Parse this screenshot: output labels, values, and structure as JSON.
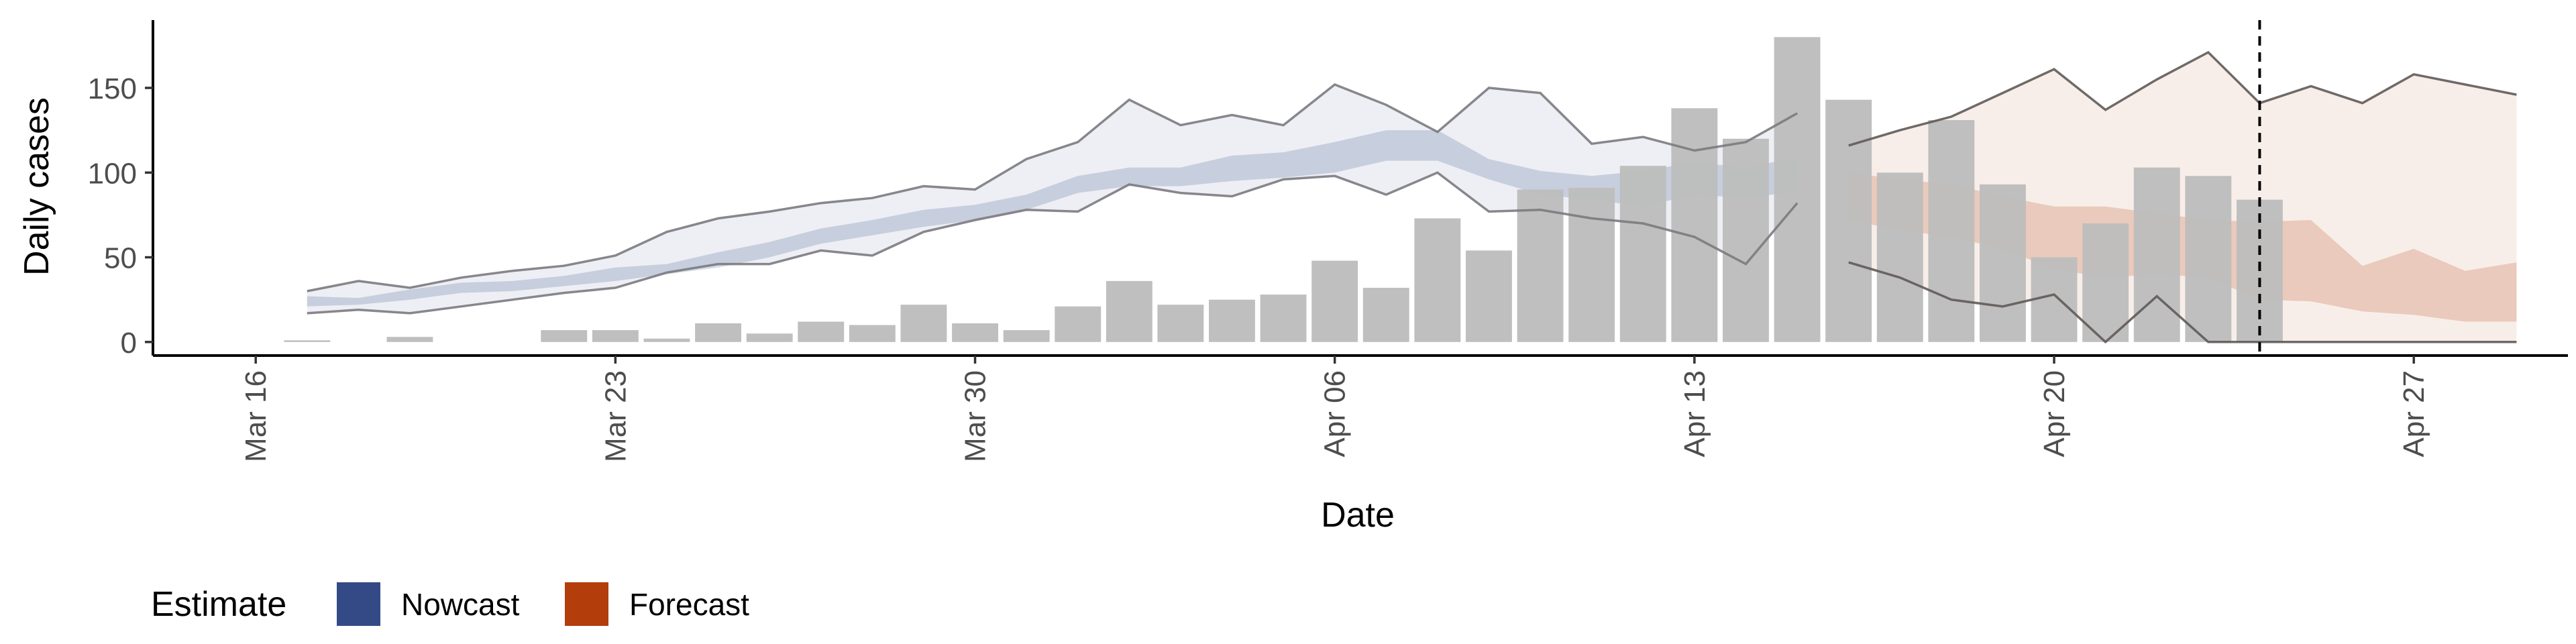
{
  "chart_data": {
    "type": "bar",
    "title": "",
    "xlabel": "Date",
    "ylabel": "Daily cases",
    "x_axis": {
      "type": "date",
      "range": [
        "2020-03-14",
        "2020-04-30"
      ],
      "ticks": [
        {
          "date": "2020-03-16",
          "label": "Mar 16"
        },
        {
          "date": "2020-03-23",
          "label": "Mar 23"
        },
        {
          "date": "2020-03-30",
          "label": "Mar 30"
        },
        {
          "date": "2020-04-06",
          "label": "Apr 06"
        },
        {
          "date": "2020-04-13",
          "label": "Apr 13"
        },
        {
          "date": "2020-04-20",
          "label": "Apr 20"
        },
        {
          "date": "2020-04-27",
          "label": "Apr 27"
        }
      ]
    },
    "y_axis": {
      "range": [
        -8,
        190
      ],
      "ticks": [
        0,
        50,
        100,
        150
      ]
    },
    "grid": false,
    "vline": {
      "date": "2020-04-24",
      "style": "dashed"
    },
    "legend": {
      "title": "Estimate",
      "placement": "bottom-left",
      "entries": [
        {
          "label": "Nowcast",
          "color": "#344a87"
        },
        {
          "label": "Forecast",
          "color": "#b33d0b"
        }
      ]
    },
    "observed_cases": {
      "color": "#bdbdbd",
      "points": [
        {
          "date": "2020-03-17",
          "value": 1
        },
        {
          "date": "2020-03-19",
          "value": 3
        },
        {
          "date": "2020-03-22",
          "value": 7
        },
        {
          "date": "2020-03-23",
          "value": 7
        },
        {
          "date": "2020-03-24",
          "value": 2
        },
        {
          "date": "2020-03-25",
          "value": 11
        },
        {
          "date": "2020-03-26",
          "value": 5
        },
        {
          "date": "2020-03-27",
          "value": 12
        },
        {
          "date": "2020-03-28",
          "value": 10
        },
        {
          "date": "2020-03-29",
          "value": 22
        },
        {
          "date": "2020-03-30",
          "value": 11
        },
        {
          "date": "2020-03-31",
          "value": 7
        },
        {
          "date": "2020-04-01",
          "value": 21
        },
        {
          "date": "2020-04-02",
          "value": 36
        },
        {
          "date": "2020-04-03",
          "value": 22
        },
        {
          "date": "2020-04-04",
          "value": 25
        },
        {
          "date": "2020-04-05",
          "value": 28
        },
        {
          "date": "2020-04-06",
          "value": 48
        },
        {
          "date": "2020-04-07",
          "value": 32
        },
        {
          "date": "2020-04-08",
          "value": 73
        },
        {
          "date": "2020-04-09",
          "value": 54
        },
        {
          "date": "2020-04-10",
          "value": 90
        },
        {
          "date": "2020-04-11",
          "value": 91
        },
        {
          "date": "2020-04-12",
          "value": 104
        },
        {
          "date": "2020-04-13",
          "value": 138
        },
        {
          "date": "2020-04-14",
          "value": 120
        },
        {
          "date": "2020-04-15",
          "value": 180
        },
        {
          "date": "2020-04-16",
          "value": 143
        },
        {
          "date": "2020-04-17",
          "value": 100
        },
        {
          "date": "2020-04-18",
          "value": 131
        },
        {
          "date": "2020-04-19",
          "value": 93
        },
        {
          "date": "2020-04-20",
          "value": 50
        },
        {
          "date": "2020-04-21",
          "value": 70
        },
        {
          "date": "2020-04-22",
          "value": 103
        },
        {
          "date": "2020-04-23",
          "value": 98
        },
        {
          "date": "2020-04-24",
          "value": 84
        }
      ]
    },
    "series": [
      {
        "name": "Nowcast",
        "color": "#344a87",
        "dates": [
          "2020-03-17",
          "2020-03-18",
          "2020-03-19",
          "2020-03-20",
          "2020-03-21",
          "2020-03-22",
          "2020-03-23",
          "2020-03-24",
          "2020-03-25",
          "2020-03-26",
          "2020-03-27",
          "2020-03-28",
          "2020-03-29",
          "2020-03-30",
          "2020-03-31",
          "2020-04-01",
          "2020-04-02",
          "2020-04-03",
          "2020-04-04",
          "2020-04-05",
          "2020-04-06",
          "2020-04-07",
          "2020-04-08",
          "2020-04-09",
          "2020-04-10",
          "2020-04-11",
          "2020-04-12",
          "2020-04-13",
          "2020-04-14",
          "2020-04-15"
        ],
        "lower_90": [
          17,
          19,
          17,
          21,
          25,
          29,
          32,
          41,
          46,
          46,
          54,
          51,
          65,
          72,
          78,
          77,
          93,
          88,
          86,
          96,
          98,
          87,
          100,
          77,
          78,
          73,
          70,
          62,
          46,
          82
        ],
        "upper_90": [
          30,
          36,
          32,
          38,
          42,
          45,
          51,
          65,
          73,
          77,
          82,
          85,
          92,
          90,
          108,
          118,
          143,
          128,
          134,
          128,
          152,
          140,
          124,
          150,
          147,
          117,
          121,
          113,
          118,
          135
        ],
        "lower_50": [
          21,
          22,
          25,
          29,
          30,
          33,
          36,
          40,
          44,
          50,
          58,
          63,
          68,
          72,
          78,
          88,
          92,
          92,
          95,
          97,
          100,
          107,
          107,
          96,
          87,
          84,
          80,
          87,
          85,
          89
        ],
        "upper_50": [
          27,
          26,
          31,
          35,
          36,
          39,
          44,
          46,
          53,
          59,
          67,
          72,
          78,
          81,
          87,
          98,
          103,
          103,
          110,
          112,
          118,
          125,
          125,
          108,
          101,
          98,
          101,
          106,
          103,
          109
        ]
      },
      {
        "name": "Forecast",
        "color": "#b33d0b",
        "dates": [
          "2020-04-16",
          "2020-04-17",
          "2020-04-18",
          "2020-04-19",
          "2020-04-20",
          "2020-04-21",
          "2020-04-22",
          "2020-04-23",
          "2020-04-24",
          "2020-04-25",
          "2020-04-26",
          "2020-04-27",
          "2020-04-28",
          "2020-04-29"
        ],
        "lower_90": [
          47,
          38,
          25,
          21,
          28,
          0,
          27,
          0,
          0,
          0,
          0,
          0,
          0,
          0
        ],
        "upper_90": [
          116,
          125,
          133,
          147,
          161,
          137,
          155,
          171,
          141,
          151,
          141,
          158,
          152,
          146
        ],
        "lower_50": [
          72,
          66,
          62,
          55,
          43,
          38,
          40,
          38,
          25,
          24,
          18,
          16,
          12,
          12
        ],
        "upper_50": [
          100,
          96,
          93,
          86,
          80,
          80,
          76,
          72,
          71,
          72,
          45,
          55,
          42,
          47
        ]
      }
    ]
  }
}
